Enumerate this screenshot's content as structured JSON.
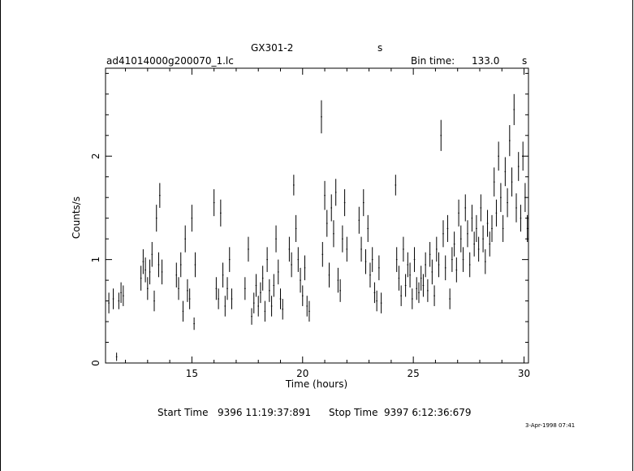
{
  "header": {
    "object": "GX301-2",
    "unit_top": "s",
    "filename": "ad41014000g200070_1.lc",
    "bin_label": "Bin time:",
    "bin_value": "133.0",
    "bin_unit": "s"
  },
  "footer": {
    "start_label": "Start Time",
    "start_value": "9396  11:19:37:891",
    "stop_label": "Stop Time",
    "stop_value": "9397   6:12:36:679",
    "stamp": "3-Apr-1998 07:41"
  },
  "chart_data": {
    "type": "scatter",
    "title": "GX301-2",
    "xlabel": "Time (hours)",
    "ylabel": "Counts/s",
    "xlim": [
      11.1,
      30.2
    ],
    "ylim": [
      0,
      2.85
    ],
    "xticks": [
      15,
      20,
      25,
      30
    ],
    "yticks": [
      0,
      1,
      2
    ],
    "grid": false,
    "series": [
      {
        "style": "vertical error bars",
        "points": [
          {
            "x": 11.25,
            "y": 0.58,
            "err": 0.1
          },
          {
            "x": 11.45,
            "y": 0.62,
            "err": 0.1
          },
          {
            "x": 11.6,
            "y": 0.06,
            "err": 0.04
          },
          {
            "x": 11.7,
            "y": 0.6,
            "err": 0.08
          },
          {
            "x": 11.8,
            "y": 0.68,
            "err": 0.1
          },
          {
            "x": 11.9,
            "y": 0.65,
            "err": 0.1
          },
          {
            "x": 12.7,
            "y": 0.82,
            "err": 0.12
          },
          {
            "x": 12.8,
            "y": 0.98,
            "err": 0.12
          },
          {
            "x": 12.9,
            "y": 0.9,
            "err": 0.12
          },
          {
            "x": 13.0,
            "y": 0.72,
            "err": 0.11
          },
          {
            "x": 13.1,
            "y": 0.88,
            "err": 0.12
          },
          {
            "x": 13.2,
            "y": 1.05,
            "err": 0.12
          },
          {
            "x": 13.3,
            "y": 0.6,
            "err": 0.1
          },
          {
            "x": 13.4,
            "y": 1.4,
            "err": 0.13
          },
          {
            "x": 13.5,
            "y": 0.95,
            "err": 0.12
          },
          {
            "x": 13.55,
            "y": 1.62,
            "err": 0.12
          },
          {
            "x": 13.65,
            "y": 0.88,
            "err": 0.12
          },
          {
            "x": 14.3,
            "y": 0.85,
            "err": 0.12
          },
          {
            "x": 14.4,
            "y": 0.72,
            "err": 0.11
          },
          {
            "x": 14.5,
            "y": 0.95,
            "err": 0.12
          },
          {
            "x": 14.6,
            "y": 0.5,
            "err": 0.1
          },
          {
            "x": 14.7,
            "y": 1.2,
            "err": 0.13
          },
          {
            "x": 14.8,
            "y": 0.7,
            "err": 0.11
          },
          {
            "x": 14.9,
            "y": 0.62,
            "err": 0.1
          },
          {
            "x": 15.0,
            "y": 1.4,
            "err": 0.13
          },
          {
            "x": 15.1,
            "y": 0.38,
            "err": 0.06
          },
          {
            "x": 15.15,
            "y": 0.95,
            "err": 0.12
          },
          {
            "x": 16.0,
            "y": 1.55,
            "err": 0.13
          },
          {
            "x": 16.1,
            "y": 0.72,
            "err": 0.11
          },
          {
            "x": 16.2,
            "y": 0.62,
            "err": 0.1
          },
          {
            "x": 16.3,
            "y": 1.45,
            "err": 0.13
          },
          {
            "x": 16.4,
            "y": 0.85,
            "err": 0.12
          },
          {
            "x": 16.5,
            "y": 0.55,
            "err": 0.1
          },
          {
            "x": 16.6,
            "y": 0.72,
            "err": 0.11
          },
          {
            "x": 16.7,
            "y": 1.0,
            "err": 0.12
          },
          {
            "x": 16.8,
            "y": 0.62,
            "err": 0.1
          },
          {
            "x": 17.4,
            "y": 0.72,
            "err": 0.11
          },
          {
            "x": 17.55,
            "y": 1.1,
            "err": 0.12
          },
          {
            "x": 17.7,
            "y": 0.45,
            "err": 0.08
          },
          {
            "x": 17.8,
            "y": 0.58,
            "err": 0.1
          },
          {
            "x": 17.9,
            "y": 0.75,
            "err": 0.11
          },
          {
            "x": 18.0,
            "y": 0.55,
            "err": 0.1
          },
          {
            "x": 18.1,
            "y": 0.68,
            "err": 0.1
          },
          {
            "x": 18.2,
            "y": 0.82,
            "err": 0.12
          },
          {
            "x": 18.3,
            "y": 0.5,
            "err": 0.1
          },
          {
            "x": 18.4,
            "y": 1.0,
            "err": 0.12
          },
          {
            "x": 18.5,
            "y": 0.7,
            "err": 0.11
          },
          {
            "x": 18.6,
            "y": 0.55,
            "err": 0.1
          },
          {
            "x": 18.7,
            "y": 0.75,
            "err": 0.11
          },
          {
            "x": 18.8,
            "y": 1.2,
            "err": 0.13
          },
          {
            "x": 18.9,
            "y": 0.88,
            "err": 0.12
          },
          {
            "x": 19.0,
            "y": 0.62,
            "err": 0.1
          },
          {
            "x": 19.1,
            "y": 0.52,
            "err": 0.1
          },
          {
            "x": 19.4,
            "y": 1.1,
            "err": 0.12
          },
          {
            "x": 19.5,
            "y": 0.95,
            "err": 0.12
          },
          {
            "x": 19.6,
            "y": 1.72,
            "err": 0.1
          },
          {
            "x": 19.7,
            "y": 1.3,
            "err": 0.13
          },
          {
            "x": 19.8,
            "y": 1.0,
            "err": 0.12
          },
          {
            "x": 19.9,
            "y": 0.8,
            "err": 0.12
          },
          {
            "x": 20.0,
            "y": 0.65,
            "err": 0.1
          },
          {
            "x": 20.1,
            "y": 0.92,
            "err": 0.12
          },
          {
            "x": 20.2,
            "y": 0.55,
            "err": 0.1
          },
          {
            "x": 20.3,
            "y": 0.5,
            "err": 0.1
          },
          {
            "x": 20.85,
            "y": 2.38,
            "err": 0.16
          },
          {
            "x": 20.9,
            "y": 1.05,
            "err": 0.12
          },
          {
            "x": 21.0,
            "y": 1.62,
            "err": 0.14
          },
          {
            "x": 21.1,
            "y": 1.35,
            "err": 0.13
          },
          {
            "x": 21.2,
            "y": 0.85,
            "err": 0.12
          },
          {
            "x": 21.3,
            "y": 1.5,
            "err": 0.13
          },
          {
            "x": 21.4,
            "y": 1.25,
            "err": 0.13
          },
          {
            "x": 21.5,
            "y": 1.65,
            "err": 0.13
          },
          {
            "x": 21.6,
            "y": 0.8,
            "err": 0.12
          },
          {
            "x": 21.7,
            "y": 0.7,
            "err": 0.11
          },
          {
            "x": 21.8,
            "y": 1.2,
            "err": 0.13
          },
          {
            "x": 21.9,
            "y": 1.55,
            "err": 0.13
          },
          {
            "x": 22.0,
            "y": 1.1,
            "err": 0.12
          },
          {
            "x": 22.55,
            "y": 1.38,
            "err": 0.13
          },
          {
            "x": 22.65,
            "y": 1.1,
            "err": 0.12
          },
          {
            "x": 22.75,
            "y": 1.55,
            "err": 0.13
          },
          {
            "x": 22.85,
            "y": 0.98,
            "err": 0.12
          },
          {
            "x": 22.95,
            "y": 1.3,
            "err": 0.13
          },
          {
            "x": 23.05,
            "y": 0.85,
            "err": 0.12
          },
          {
            "x": 23.15,
            "y": 1.0,
            "err": 0.12
          },
          {
            "x": 23.25,
            "y": 0.68,
            "err": 0.1
          },
          {
            "x": 23.35,
            "y": 0.6,
            "err": 0.1
          },
          {
            "x": 23.45,
            "y": 0.92,
            "err": 0.12
          },
          {
            "x": 23.55,
            "y": 0.58,
            "err": 0.1
          },
          {
            "x": 24.2,
            "y": 1.72,
            "err": 0.1
          },
          {
            "x": 24.25,
            "y": 1.0,
            "err": 0.12
          },
          {
            "x": 24.35,
            "y": 0.82,
            "err": 0.12
          },
          {
            "x": 24.45,
            "y": 0.65,
            "err": 0.1
          },
          {
            "x": 24.55,
            "y": 1.1,
            "err": 0.12
          },
          {
            "x": 24.65,
            "y": 0.75,
            "err": 0.11
          },
          {
            "x": 24.75,
            "y": 0.95,
            "err": 0.12
          },
          {
            "x": 24.85,
            "y": 0.85,
            "err": 0.12
          },
          {
            "x": 24.95,
            "y": 0.62,
            "err": 0.1
          },
          {
            "x": 25.05,
            "y": 1.0,
            "err": 0.12
          },
          {
            "x": 25.15,
            "y": 0.72,
            "err": 0.11
          },
          {
            "x": 25.25,
            "y": 0.68,
            "err": 0.1
          },
          {
            "x": 25.35,
            "y": 0.82,
            "err": 0.12
          },
          {
            "x": 25.45,
            "y": 0.75,
            "err": 0.11
          },
          {
            "x": 25.55,
            "y": 0.95,
            "err": 0.12
          },
          {
            "x": 25.65,
            "y": 0.7,
            "err": 0.11
          },
          {
            "x": 25.75,
            "y": 1.05,
            "err": 0.12
          },
          {
            "x": 25.85,
            "y": 0.88,
            "err": 0.12
          },
          {
            "x": 25.95,
            "y": 0.65,
            "err": 0.1
          },
          {
            "x": 26.05,
            "y": 1.1,
            "err": 0.12
          },
          {
            "x": 26.15,
            "y": 0.95,
            "err": 0.12
          },
          {
            "x": 26.25,
            "y": 2.2,
            "err": 0.15
          },
          {
            "x": 26.35,
            "y": 1.25,
            "err": 0.13
          },
          {
            "x": 26.45,
            "y": 0.92,
            "err": 0.12
          },
          {
            "x": 26.55,
            "y": 1.3,
            "err": 0.13
          },
          {
            "x": 26.65,
            "y": 0.62,
            "err": 0.1
          },
          {
            "x": 26.75,
            "y": 1.0,
            "err": 0.12
          },
          {
            "x": 26.85,
            "y": 1.15,
            "err": 0.12
          },
          {
            "x": 26.95,
            "y": 0.9,
            "err": 0.12
          },
          {
            "x": 27.05,
            "y": 1.45,
            "err": 0.13
          },
          {
            "x": 27.15,
            "y": 1.2,
            "err": 0.13
          },
          {
            "x": 27.25,
            "y": 1.0,
            "err": 0.12
          },
          {
            "x": 27.35,
            "y": 1.5,
            "err": 0.13
          },
          {
            "x": 27.45,
            "y": 1.25,
            "err": 0.13
          },
          {
            "x": 27.55,
            "y": 0.95,
            "err": 0.12
          },
          {
            "x": 27.65,
            "y": 1.4,
            "err": 0.13
          },
          {
            "x": 27.75,
            "y": 1.15,
            "err": 0.12
          },
          {
            "x": 27.85,
            "y": 1.3,
            "err": 0.13
          },
          {
            "x": 27.95,
            "y": 1.1,
            "err": 0.12
          },
          {
            "x": 28.05,
            "y": 1.5,
            "err": 0.13
          },
          {
            "x": 28.15,
            "y": 1.2,
            "err": 0.13
          },
          {
            "x": 28.25,
            "y": 0.98,
            "err": 0.12
          },
          {
            "x": 28.35,
            "y": 1.35,
            "err": 0.13
          },
          {
            "x": 28.45,
            "y": 1.15,
            "err": 0.12
          },
          {
            "x": 28.55,
            "y": 1.3,
            "err": 0.13
          },
          {
            "x": 28.65,
            "y": 1.75,
            "err": 0.14
          },
          {
            "x": 28.75,
            "y": 1.45,
            "err": 0.13
          },
          {
            "x": 28.85,
            "y": 2.0,
            "err": 0.14
          },
          {
            "x": 28.95,
            "y": 1.6,
            "err": 0.14
          },
          {
            "x": 29.05,
            "y": 1.3,
            "err": 0.13
          },
          {
            "x": 29.15,
            "y": 1.85,
            "err": 0.14
          },
          {
            "x": 29.25,
            "y": 1.55,
            "err": 0.14
          },
          {
            "x": 29.35,
            "y": 2.15,
            "err": 0.15
          },
          {
            "x": 29.45,
            "y": 1.75,
            "err": 0.14
          },
          {
            "x": 29.55,
            "y": 2.45,
            "err": 0.15
          },
          {
            "x": 29.65,
            "y": 1.5,
            "err": 0.14
          },
          {
            "x": 29.75,
            "y": 1.9,
            "err": 0.14
          },
          {
            "x": 29.85,
            "y": 1.4,
            "err": 0.13
          },
          {
            "x": 29.95,
            "y": 2.0,
            "err": 0.14
          },
          {
            "x": 30.05,
            "y": 1.6,
            "err": 0.14
          },
          {
            "x": 30.15,
            "y": 1.3,
            "err": 0.13
          }
        ]
      }
    ]
  }
}
